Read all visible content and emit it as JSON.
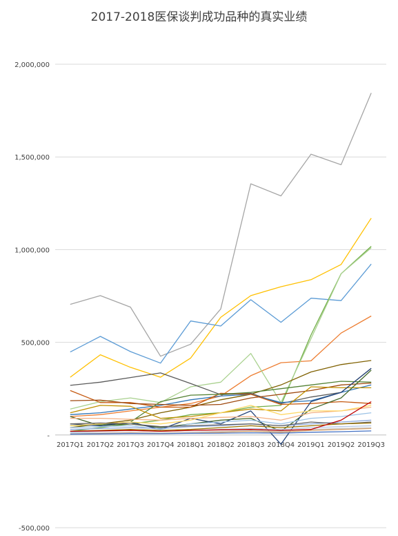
{
  "chart_data": {
    "type": "line",
    "title": "2017-2018医保谈判成功品种的真实业绩",
    "xlabel": "",
    "ylabel": "",
    "categories": [
      "2017Q1",
      "2017Q2",
      "2017Q3",
      "2017Q4",
      "2018Q1",
      "2018Q2",
      "2018Q3",
      "2018Q4",
      "2019Q1",
      "2019Q2",
      "2019Q3"
    ],
    "ylim": [
      -500000,
      2000000
    ],
    "yticks": [
      2000000,
      1500000,
      1000000,
      500000,
      0,
      -500000
    ],
    "ytick_labels": [
      "2,000,000",
      "1,500,000",
      "1,000,000",
      "500,000",
      "-",
      "-500,000"
    ],
    "grid": "horizontal",
    "legend": "none",
    "series": [
      {
        "color": "#a5a5a5",
        "values": [
          705000,
          752000,
          690000,
          425000,
          490000,
          680000,
          1355000,
          1290000,
          1515000,
          1458000,
          1845000
        ]
      },
      {
        "color": "#ffc000",
        "values": [
          312000,
          433000,
          365000,
          312000,
          415000,
          635000,
          752000,
          800000,
          838000,
          920000,
          1170000
        ]
      },
      {
        "color": "#5b9bd5",
        "values": [
          448000,
          532000,
          450000,
          388000,
          615000,
          588000,
          730000,
          608000,
          738000,
          725000,
          922000
        ]
      },
      {
        "color": "#70ad47",
        "values": [
          20000,
          40000,
          60000,
          80000,
          110000,
          120000,
          150000,
          160000,
          540000,
          870000,
          1018000
        ]
      },
      {
        "color": "#ed7d31",
        "values": [
          100000,
          110000,
          130000,
          150000,
          170000,
          210000,
          320000,
          390000,
          400000,
          550000,
          642000
        ]
      },
      {
        "color": "#a9d18e",
        "values": [
          140000,
          180000,
          200000,
          175000,
          260000,
          285000,
          440000,
          175000,
          520000,
          870000,
          1010000
        ]
      },
      {
        "color": "#7f6000",
        "values": [
          40000,
          60000,
          80000,
          120000,
          150000,
          190000,
          220000,
          270000,
          340000,
          380000,
          402000
        ]
      },
      {
        "color": "#595959",
        "values": [
          268000,
          285000,
          310000,
          335000,
          278000,
          218000,
          225000,
          170000,
          205000,
          230000,
          360000
        ]
      },
      {
        "color": "#2e75b6",
        "values": [
          110000,
          120000,
          140000,
          160000,
          190000,
          210000,
          220000,
          175000,
          185000,
          230000,
          270000
        ]
      },
      {
        "color": "#c55a11",
        "values": [
          240000,
          175000,
          175000,
          150000,
          150000,
          225000,
          220000,
          165000,
          170000,
          180000,
          170000
        ]
      },
      {
        "color": "#9e480e",
        "values": [
          185000,
          188000,
          170000,
          165000,
          160000,
          165000,
          200000,
          220000,
          240000,
          270000,
          280000
        ]
      },
      {
        "color": "#548235",
        "values": [
          50000,
          55000,
          70000,
          180000,
          215000,
          220000,
          230000,
          250000,
          270000,
          290000,
          285000
        ]
      },
      {
        "color": "#bf9000",
        "values": [
          120000,
          160000,
          155000,
          90000,
          100000,
          120000,
          140000,
          130000,
          260000,
          255000,
          255000
        ]
      },
      {
        "color": "#43682b",
        "values": [
          100000,
          50000,
          60000,
          40000,
          60000,
          80000,
          90000,
          20000,
          140000,
          200000,
          350000
        ]
      },
      {
        "color": "#264478",
        "values": [
          60000,
          50000,
          70000,
          30000,
          90000,
          60000,
          130000,
          -50000,
          180000,
          230000,
          360000
        ]
      },
      {
        "color": "#f4b183",
        "values": [
          90000,
          90000,
          85000,
          80000,
          90000,
          95000,
          100000,
          80000,
          120000,
          130000,
          150000
        ]
      },
      {
        "color": "#ffd966",
        "values": [
          50000,
          60000,
          70000,
          60000,
          80000,
          120000,
          160000,
          110000,
          130000,
          130000,
          160000
        ]
      },
      {
        "color": "#9dc3e6",
        "values": [
          40000,
          45000,
          50000,
          30000,
          60000,
          70000,
          80000,
          60000,
          90000,
          100000,
          120000
        ]
      },
      {
        "color": "#8faadc",
        "values": [
          30000,
          35000,
          40000,
          35000,
          45000,
          50000,
          60000,
          50000,
          60000,
          70000,
          80000
        ]
      },
      {
        "color": "#636363",
        "values": [
          60000,
          65000,
          60000,
          45000,
          50000,
          55000,
          60000,
          50000,
          70000,
          60000,
          70000
        ]
      },
      {
        "color": "#997300",
        "values": [
          20000,
          25000,
          30000,
          25000,
          30000,
          40000,
          50000,
          40000,
          50000,
          60000,
          65000
        ]
      },
      {
        "color": "#b4c7e7",
        "values": [
          15000,
          20000,
          25000,
          20000,
          25000,
          30000,
          35000,
          30000,
          40000,
          45000,
          50000
        ]
      },
      {
        "color": "#c9c9c9",
        "values": [
          10000,
          12000,
          15000,
          12000,
          15000,
          20000,
          25000,
          20000,
          30000,
          35000,
          40000
        ]
      },
      {
        "color": "#d6a16b",
        "values": [
          5000,
          8000,
          10000,
          8000,
          10000,
          15000,
          20000,
          15000,
          25000,
          30000,
          35000
        ]
      },
      {
        "color": "#c00000",
        "values": [
          20000,
          22000,
          25000,
          20000,
          25000,
          28000,
          30000,
          25000,
          30000,
          80000,
          180000
        ]
      },
      {
        "color": "#4472c4",
        "values": [
          5000,
          6000,
          8000,
          7000,
          9000,
          10000,
          12000,
          10000,
          15000,
          18000,
          22000
        ]
      }
    ]
  }
}
